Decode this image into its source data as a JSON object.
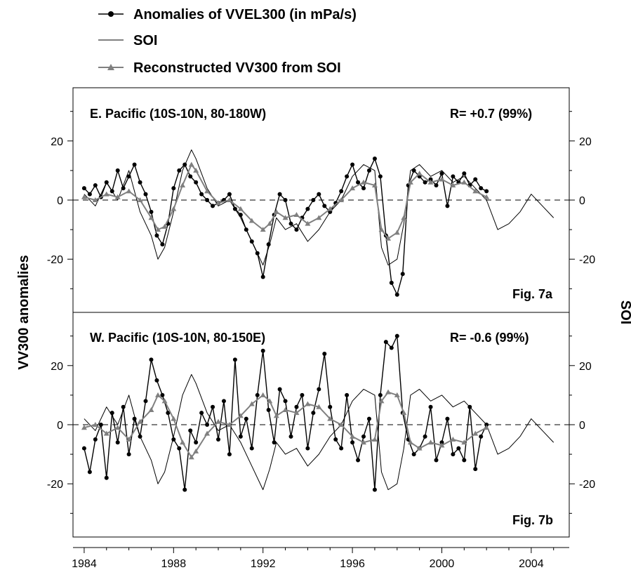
{
  "legend": [
    {
      "label": "Anomalies of VVEL300 (in mPa/s)",
      "marker": "circle",
      "color": "#000000"
    },
    {
      "label": "SOI",
      "marker": "none",
      "color": "#000000"
    },
    {
      "label": "Reconstructed VV300 from SOI",
      "marker": "triangle",
      "color": "#808080"
    }
  ],
  "axes": {
    "left_title": "VV300 anomalies",
    "right_title": "SOI",
    "x_ticks": [
      "1984",
      "1988",
      "1992",
      "1996",
      "2000",
      "2004"
    ]
  },
  "chart_data": [
    {
      "type": "line",
      "panel_title": "E. Pacific (10S-10N, 80-180W)",
      "correlation": "R= +0.7 (99%)",
      "fig_label": "Fig. 7a",
      "xlim": [
        1983.5,
        2005.7
      ],
      "ylim": [
        -38,
        38
      ],
      "y_ticks": [
        "20",
        "0",
        "-20"
      ],
      "y_tick_values": [
        20,
        0,
        -20
      ],
      "right_ticks": [
        "20",
        "0",
        "-20"
      ],
      "zero_line": "dashed",
      "series": [
        {
          "name": "Anomalies of VVEL300 (in mPa/s)",
          "color": "#000000",
          "marker": "circle",
          "x": [
            1984.0,
            1984.25,
            1984.5,
            1984.75,
            1985.0,
            1985.25,
            1985.5,
            1985.75,
            1986.0,
            1986.25,
            1986.5,
            1986.75,
            1987.0,
            1987.25,
            1987.5,
            1987.75,
            1988.0,
            1988.25,
            1988.5,
            1988.75,
            1989.0,
            1989.25,
            1989.5,
            1989.75,
            1990.0,
            1990.25,
            1990.5,
            1990.75,
            1991.0,
            1991.25,
            1991.5,
            1991.75,
            1992.0,
            1992.25,
            1992.5,
            1992.75,
            1993.0,
            1993.25,
            1993.5,
            1993.75,
            1994.0,
            1994.25,
            1994.5,
            1994.75,
            1995.0,
            1995.25,
            1995.5,
            1995.75,
            1996.0,
            1996.25,
            1996.5,
            1996.75,
            1997.0,
            1997.25,
            1997.5,
            1997.75,
            1998.0,
            1998.25,
            1998.5,
            1998.75,
            1999.0,
            1999.25,
            1999.5,
            1999.75,
            2000.0,
            2000.25,
            2000.5,
            2000.75,
            2001.0,
            2001.25,
            2001.5,
            2001.75,
            2002.0
          ],
          "y": [
            4,
            2,
            5,
            1,
            6,
            3,
            10,
            4,
            8,
            12,
            6,
            2,
            -4,
            -12,
            -15,
            -8,
            4,
            10,
            12,
            8,
            6,
            2,
            0,
            -2,
            -1,
            0,
            2,
            -3,
            -5,
            -10,
            -14,
            -18,
            -26,
            -15,
            -5,
            2,
            0,
            -8,
            -10,
            -6,
            -3,
            0,
            2,
            -2,
            -4,
            -1,
            3,
            8,
            12,
            6,
            4,
            10,
            14,
            8,
            -12,
            -28,
            -32,
            -25,
            5,
            10,
            8,
            6,
            7,
            5,
            9,
            -2,
            8,
            6,
            9,
            5,
            7,
            4,
            3
          ]
        },
        {
          "name": "SOI",
          "color": "#000000",
          "marker": "none",
          "x": [
            1984.0,
            1984.5,
            1985.0,
            1985.5,
            1986.0,
            1986.5,
            1987.0,
            1987.3,
            1987.6,
            1988.0,
            1988.4,
            1988.8,
            1989.0,
            1989.5,
            1990.0,
            1990.5,
            1991.0,
            1991.5,
            1992.0,
            1992.3,
            1992.6,
            1993.0,
            1993.5,
            1994.0,
            1994.5,
            1995.0,
            1995.5,
            1996.0,
            1996.5,
            1997.0,
            1997.3,
            1997.6,
            1998.0,
            1998.3,
            1998.6,
            1999.0,
            1999.5,
            2000.0,
            2000.5,
            2001.0,
            2001.5,
            2002.0,
            2002.5,
            2003.0,
            2003.5,
            2004.0,
            2004.5,
            2005.0
          ],
          "y": [
            2,
            -2,
            6,
            0,
            10,
            -4,
            -12,
            -20,
            -16,
            -4,
            10,
            17,
            14,
            4,
            -2,
            0,
            -6,
            -14,
            -22,
            -15,
            -6,
            -10,
            -8,
            -14,
            -10,
            -4,
            0,
            8,
            12,
            10,
            -16,
            -22,
            -20,
            -8,
            10,
            12,
            8,
            10,
            6,
            8,
            4,
            0,
            -10,
            -8,
            -4,
            2,
            -2,
            -6
          ]
        },
        {
          "name": "Reconstructed VV300 from SOI",
          "color": "#808080",
          "marker": "triangle",
          "x": [
            1984.0,
            1984.5,
            1985.0,
            1985.5,
            1986.0,
            1986.5,
            1987.0,
            1987.3,
            1987.6,
            1988.0,
            1988.4,
            1988.8,
            1989.0,
            1989.5,
            1990.0,
            1990.5,
            1991.0,
            1991.5,
            1992.0,
            1992.3,
            1992.6,
            1993.0,
            1993.5,
            1994.0,
            1994.5,
            1995.0,
            1995.5,
            1996.0,
            1996.5,
            1997.0,
            1997.3,
            1997.6,
            1998.0,
            1998.3,
            1998.6,
            1999.0,
            1999.5,
            2000.0,
            2000.5,
            2001.0,
            2001.5,
            2002.0
          ],
          "y": [
            1,
            0,
            2,
            1,
            3,
            0,
            -6,
            -10,
            -9,
            -3,
            5,
            12,
            10,
            3,
            -1,
            0,
            -3,
            -7,
            -10,
            -8,
            -4,
            -6,
            -5,
            -8,
            -6,
            -3,
            0,
            4,
            6,
            5,
            -10,
            -13,
            -11,
            -6,
            6,
            9,
            6,
            7,
            5,
            6,
            3,
            1
          ]
        }
      ]
    },
    {
      "type": "line",
      "panel_title": "W. Pacific (10S-10N, 80-150E)",
      "correlation": "R= -0.6 (99%)",
      "fig_label": "Fig. 7b",
      "xlim": [
        1983.5,
        2005.7
      ],
      "ylim": [
        -38,
        38
      ],
      "y_ticks": [
        "20",
        "0",
        "-20"
      ],
      "y_tick_values": [
        20,
        0,
        -20
      ],
      "right_ticks": [
        "20",
        "0",
        "-20"
      ],
      "zero_line": "dashed",
      "series": [
        {
          "name": "Anomalies of VVEL300 (in mPa/s)",
          "color": "#000000",
          "marker": "circle",
          "x": [
            1984.0,
            1984.25,
            1984.5,
            1984.75,
            1985.0,
            1985.25,
            1985.5,
            1985.75,
            1986.0,
            1986.25,
            1986.5,
            1986.75,
            1987.0,
            1987.25,
            1987.5,
            1987.75,
            1988.0,
            1988.25,
            1988.5,
            1988.75,
            1989.0,
            1989.25,
            1989.5,
            1989.75,
            1990.0,
            1990.25,
            1990.5,
            1990.75,
            1991.0,
            1991.25,
            1991.5,
            1991.75,
            1992.0,
            1992.25,
            1992.5,
            1992.75,
            1993.0,
            1993.25,
            1993.5,
            1993.75,
            1994.0,
            1994.25,
            1994.5,
            1994.75,
            1995.0,
            1995.25,
            1995.5,
            1995.75,
            1996.0,
            1996.25,
            1996.5,
            1996.75,
            1997.0,
            1997.25,
            1997.5,
            1997.75,
            1998.0,
            1998.25,
            1998.5,
            1998.75,
            1999.0,
            1999.25,
            1999.5,
            1999.75,
            2000.0,
            2000.25,
            2000.5,
            2000.75,
            2001.0,
            2001.25,
            2001.5,
            2001.75,
            2002.0
          ],
          "y": [
            -8,
            -16,
            -5,
            0,
            -18,
            4,
            -6,
            6,
            -10,
            2,
            -4,
            8,
            22,
            15,
            10,
            4,
            -5,
            -8,
            -22,
            -2,
            -6,
            4,
            0,
            6,
            -5,
            8,
            -10,
            22,
            -4,
            2,
            -8,
            10,
            25,
            5,
            -6,
            12,
            8,
            -4,
            6,
            10,
            -8,
            4,
            12,
            24,
            6,
            -5,
            -8,
            10,
            -6,
            -12,
            -4,
            2,
            -22,
            10,
            28,
            26,
            30,
            4,
            -5,
            -10,
            -8,
            -4,
            6,
            -12,
            -6,
            2,
            -10,
            -8,
            -12,
            6,
            -15,
            -4,
            0
          ]
        },
        {
          "name": "SOI",
          "color": "#000000",
          "marker": "none",
          "x": [
            1984.0,
            1984.5,
            1985.0,
            1985.5,
            1986.0,
            1986.5,
            1987.0,
            1987.3,
            1987.6,
            1988.0,
            1988.4,
            1988.8,
            1989.0,
            1989.5,
            1990.0,
            1990.5,
            1991.0,
            1991.5,
            1992.0,
            1992.3,
            1992.6,
            1993.0,
            1993.5,
            1994.0,
            1994.5,
            1995.0,
            1995.5,
            1996.0,
            1996.5,
            1997.0,
            1997.3,
            1997.6,
            1998.0,
            1998.3,
            1998.6,
            1999.0,
            1999.5,
            2000.0,
            2000.5,
            2001.0,
            2001.5,
            2002.0,
            2002.5,
            2003.0,
            2003.5,
            2004.0,
            2004.5,
            2005.0
          ],
          "y": [
            2,
            -2,
            6,
            0,
            10,
            -4,
            -12,
            -20,
            -16,
            -4,
            10,
            17,
            14,
            4,
            -2,
            0,
            -6,
            -14,
            -22,
            -15,
            -6,
            -10,
            -8,
            -14,
            -10,
            -4,
            0,
            8,
            12,
            10,
            -16,
            -22,
            -20,
            -8,
            10,
            12,
            8,
            10,
            6,
            8,
            4,
            0,
            -10,
            -8,
            -4,
            2,
            -2,
            -6
          ]
        },
        {
          "name": "Reconstructed VV300 from SOI",
          "color": "#808080",
          "marker": "triangle",
          "x": [
            1984.0,
            1984.5,
            1985.0,
            1985.5,
            1986.0,
            1986.5,
            1987.0,
            1987.3,
            1987.6,
            1988.0,
            1988.4,
            1988.8,
            1989.0,
            1989.5,
            1990.0,
            1990.5,
            1991.0,
            1991.5,
            1992.0,
            1992.3,
            1992.6,
            1993.0,
            1993.5,
            1994.0,
            1994.5,
            1995.0,
            1995.5,
            1996.0,
            1996.5,
            1997.0,
            1997.3,
            1997.6,
            1998.0,
            1998.3,
            1998.6,
            1999.0,
            1999.5,
            2000.0,
            2000.5,
            2001.0,
            2001.5,
            2002.0
          ],
          "y": [
            -1,
            0,
            -3,
            -1,
            -5,
            1,
            5,
            10,
            8,
            2,
            -6,
            -11,
            -9,
            -3,
            1,
            0,
            3,
            7,
            10,
            8,
            3,
            5,
            4,
            7,
            6,
            2,
            0,
            -4,
            -6,
            -5,
            8,
            11,
            10,
            4,
            -6,
            -8,
            -6,
            -7,
            -5,
            -6,
            -3,
            -1
          ]
        }
      ]
    }
  ]
}
